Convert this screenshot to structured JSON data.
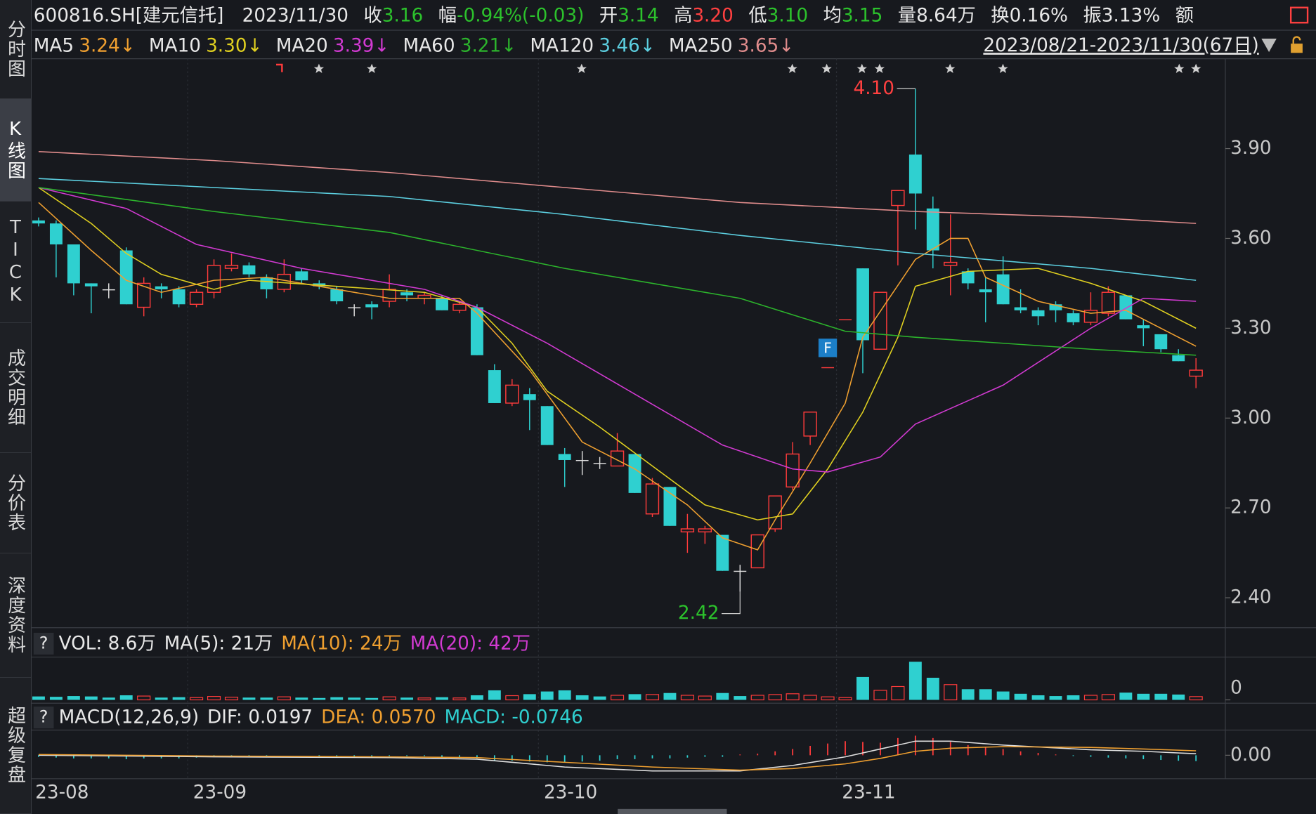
{
  "sidebar": {
    "tabs": [
      "分时图",
      "K线图",
      "TICK",
      "成交明细",
      "分价表",
      "深度资料",
      "超级复盘"
    ],
    "selected": 1
  },
  "header": {
    "title": "600816.SH[建元信托]",
    "date": "2023/11/30",
    "fields": [
      {
        "label": "收",
        "value": "3.16",
        "color": "#2cc22c"
      },
      {
        "label": "幅",
        "value": "-0.94%(-0.03)",
        "color": "#2cc22c"
      },
      {
        "label": "开",
        "value": "3.14",
        "color": "#2cc22c"
      },
      {
        "label": "高",
        "value": "3.20",
        "color": "#ff4040"
      },
      {
        "label": "低",
        "value": "3.10",
        "color": "#2cc22c"
      },
      {
        "label": "均",
        "value": "3.15",
        "color": "#2cc22c"
      },
      {
        "label": "量",
        "value": "8.64万",
        "color": "#e8e8e8"
      },
      {
        "label": "换",
        "value": "0.16%",
        "color": "#e8e8e8"
      },
      {
        "label": "振",
        "value": "3.13%",
        "color": "#e8e8e8"
      },
      {
        "label": "额"
      }
    ]
  },
  "chart_data": [
    {
      "type": "candlestick",
      "range_label": "2023/08/21-2023/11/30(67日)",
      "up_color": "#ff3b3b",
      "down_color": "#2fd0d0",
      "categories": [
        "23-08",
        null,
        null,
        null,
        null,
        null,
        null,
        null,
        null,
        "23-09",
        null,
        null,
        null,
        null,
        null,
        null,
        null,
        null,
        null,
        null,
        null,
        null,
        null,
        null,
        null,
        null,
        null,
        null,
        null,
        "23-10",
        null,
        null,
        null,
        null,
        null,
        null,
        null,
        null,
        null,
        null,
        null,
        null,
        null,
        null,
        null,
        null,
        "23-11",
        null,
        null,
        null,
        null,
        null,
        null,
        null,
        null,
        null,
        null,
        null,
        null,
        null,
        null,
        null,
        null,
        null,
        null,
        null,
        null
      ],
      "open": [
        3.66,
        3.65,
        3.58,
        3.45,
        3.43,
        3.56,
        3.37,
        3.44,
        3.43,
        3.38,
        3.42,
        3.5,
        3.51,
        3.47,
        3.43,
        3.49,
        3.45,
        3.43,
        3.37,
        3.38,
        3.39,
        3.42,
        3.4,
        3.4,
        3.36,
        3.37,
        3.16,
        3.05,
        3.08,
        3.04,
        2.88,
        2.86,
        2.85,
        2.84,
        2.88,
        2.68,
        2.77,
        2.62,
        2.62,
        2.61,
        2.49,
        2.5,
        2.63,
        2.77,
        2.94,
        3.17,
        3.33,
        3.5,
        3.23,
        3.71,
        3.88,
        3.7,
        3.51,
        3.49,
        3.43,
        3.48,
        3.37,
        3.36,
        3.38,
        3.35,
        3.32,
        3.35,
        3.41,
        3.31,
        3.28,
        3.21,
        3.14
      ],
      "high": [
        3.67,
        3.66,
        3.58,
        3.45,
        3.45,
        3.57,
        3.47,
        3.45,
        3.44,
        3.43,
        3.53,
        3.55,
        3.52,
        3.48,
        3.53,
        3.5,
        3.46,
        3.44,
        3.38,
        3.39,
        3.48,
        3.43,
        3.42,
        3.41,
        3.39,
        3.38,
        3.18,
        3.13,
        3.1,
        3.04,
        2.9,
        2.89,
        2.87,
        2.95,
        2.88,
        2.8,
        2.77,
        2.68,
        2.64,
        2.61,
        2.51,
        2.61,
        2.74,
        2.92,
        3.02,
        3.17,
        3.33,
        3.5,
        3.42,
        3.76,
        4.1,
        3.74,
        3.68,
        3.5,
        3.47,
        3.54,
        3.43,
        3.37,
        3.39,
        3.36,
        3.42,
        3.44,
        3.41,
        3.33,
        3.28,
        3.23,
        3.2
      ],
      "low": [
        3.64,
        3.47,
        3.41,
        3.35,
        3.4,
        3.38,
        3.34,
        3.4,
        3.37,
        3.37,
        3.4,
        3.49,
        3.47,
        3.4,
        3.42,
        3.45,
        3.43,
        3.38,
        3.34,
        3.33,
        3.37,
        3.39,
        3.38,
        3.36,
        3.35,
        3.21,
        3.05,
        3.04,
        2.96,
        2.91,
        2.77,
        2.81,
        2.83,
        2.84,
        2.75,
        2.67,
        2.64,
        2.55,
        2.58,
        2.49,
        2.42,
        2.5,
        2.62,
        2.76,
        2.91,
        3.17,
        3.33,
        3.15,
        3.23,
        3.51,
        3.63,
        3.5,
        3.41,
        3.43,
        3.32,
        3.38,
        3.35,
        3.31,
        3.32,
        3.31,
        3.31,
        3.34,
        3.33,
        3.24,
        3.22,
        3.19,
        3.1
      ],
      "close": [
        3.65,
        3.58,
        3.45,
        3.44,
        3.43,
        3.38,
        3.45,
        3.43,
        3.38,
        3.42,
        3.51,
        3.51,
        3.48,
        3.43,
        3.48,
        3.46,
        3.44,
        3.39,
        3.37,
        3.37,
        3.43,
        3.41,
        3.41,
        3.36,
        3.38,
        3.21,
        3.05,
        3.11,
        3.06,
        2.91,
        2.86,
        2.86,
        2.85,
        2.89,
        2.75,
        2.78,
        2.64,
        2.63,
        2.63,
        2.49,
        2.49,
        2.61,
        2.74,
        2.88,
        3.02,
        3.17,
        3.33,
        3.26,
        3.42,
        3.76,
        3.75,
        3.56,
        3.52,
        3.45,
        3.42,
        3.38,
        3.36,
        3.34,
        3.36,
        3.32,
        3.36,
        3.42,
        3.33,
        3.3,
        3.23,
        3.19,
        3.16
      ],
      "series": [
        {
          "name": "MA5",
          "label": "3.24↓",
          "color": "#f0a030",
          "x": [
            0,
            3,
            5,
            7,
            10,
            13,
            17,
            20,
            24,
            25,
            28,
            29,
            31,
            34,
            37,
            39,
            41,
            42,
            44,
            46,
            47,
            50,
            52,
            53,
            54,
            57,
            60,
            62,
            66
          ],
          "values": [
            3.72,
            3.56,
            3.46,
            3.42,
            3.46,
            3.47,
            3.43,
            3.4,
            3.4,
            3.35,
            3.16,
            3.08,
            2.92,
            2.83,
            2.71,
            2.6,
            2.56,
            2.66,
            2.85,
            3.05,
            3.27,
            3.53,
            3.6,
            3.6,
            3.47,
            3.39,
            3.35,
            3.36,
            3.24
          ]
        },
        {
          "name": "MA10",
          "label": "3.30↓",
          "color": "#e0d020",
          "x": [
            0,
            3,
            5,
            7,
            10,
            12,
            17,
            22,
            25,
            27,
            29,
            32,
            35,
            38,
            41,
            43,
            45,
            47,
            49,
            50,
            53,
            57,
            60,
            63,
            66
          ],
          "values": [
            3.77,
            3.65,
            3.55,
            3.48,
            3.43,
            3.46,
            3.44,
            3.42,
            3.37,
            3.25,
            3.09,
            2.97,
            2.84,
            2.71,
            2.66,
            2.68,
            2.83,
            3.02,
            3.27,
            3.44,
            3.49,
            3.5,
            3.45,
            3.39,
            3.3
          ]
        },
        {
          "name": "MA20",
          "label": "3.39↓",
          "color": "#d23ad2",
          "x": [
            0,
            5,
            9,
            15,
            22,
            25,
            29,
            34,
            39,
            43,
            45,
            48,
            50,
            55,
            60,
            63,
            66
          ],
          "values": [
            3.77,
            3.7,
            3.58,
            3.5,
            3.43,
            3.37,
            3.25,
            3.08,
            2.91,
            2.83,
            2.82,
            2.87,
            2.98,
            3.11,
            3.3,
            3.4,
            3.39
          ]
        },
        {
          "name": "MA60",
          "label": "3.21↓",
          "color": "#2cb42c",
          "x": [
            0,
            10,
            20,
            30,
            40,
            46,
            50,
            60,
            66
          ],
          "values": [
            3.77,
            3.69,
            3.62,
            3.5,
            3.4,
            3.29,
            3.27,
            3.23,
            3.21
          ]
        },
        {
          "name": "MA120",
          "label": "3.46↓",
          "color": "#5ccfe0",
          "x": [
            0,
            10,
            20,
            30,
            40,
            50,
            60,
            66
          ],
          "values": [
            3.8,
            3.77,
            3.74,
            3.68,
            3.61,
            3.55,
            3.5,
            3.46
          ]
        },
        {
          "name": "MA250",
          "label": "3.65↓",
          "color": "#e08c8c",
          "x": [
            0,
            10,
            20,
            30,
            40,
            50,
            60,
            66
          ],
          "values": [
            3.89,
            3.86,
            3.82,
            3.77,
            3.72,
            3.69,
            3.67,
            3.65
          ]
        }
      ],
      "ylim": [
        2.3,
        4.2
      ],
      "yticks": [
        {
          "value": 2.4,
          "label": "2.40"
        },
        {
          "value": 2.7,
          "label": "2.70"
        },
        {
          "value": 3.0,
          "label": "3.00"
        },
        {
          "value": 3.3,
          "label": "3.30"
        },
        {
          "value": 3.6,
          "label": "3.60"
        },
        {
          "value": 3.9,
          "label": "3.90"
        }
      ],
      "annotations": {
        "max": "4.10",
        "min": "2.42"
      },
      "markers": [
        {
          "text": "F",
          "index": 45
        }
      ]
    },
    {
      "type": "bar",
      "help": "?",
      "header": [
        {
          "text": "VOL: 8.6万",
          "color": "#e8e8e8"
        },
        {
          "text": "MA(5): 21万",
          "color": "#e8e8e8"
        },
        {
          "text": "MA(10): 24万",
          "color": "#f0a030"
        },
        {
          "text": "MA(20): 42万",
          "color": "#d23ad2"
        }
      ],
      "values": [
        9,
        8,
        10,
        9,
        6,
        12,
        10,
        6,
        7,
        6,
        9,
        7,
        6,
        6,
        8,
        6,
        5,
        7,
        6,
        5,
        8,
        6,
        5,
        7,
        5,
        12,
        25,
        11,
        15,
        22,
        25,
        12,
        9,
        12,
        15,
        14,
        18,
        12,
        10,
        18,
        10,
        12,
        14,
        16,
        12,
        8,
        6,
        60,
        25,
        35,
        100,
        58,
        40,
        28,
        28,
        22,
        16,
        12,
        10,
        12,
        12,
        14,
        19,
        16,
        16,
        14,
        8.6
      ],
      "ylim": [
        0,
        110
      ],
      "yticks": [
        0
      ]
    },
    {
      "type": "macd",
      "help": "?",
      "header": [
        {
          "text": "MACD(12,26,9)",
          "color": "#e8e8e8"
        },
        {
          "text": "DIF: 0.0197",
          "color": "#e8e8e8"
        },
        {
          "text": "DEA: 0.0570",
          "color": "#f0a030"
        },
        {
          "text": "MACD: -0.0746",
          "color": "#2fd0d0"
        }
      ],
      "values": [
        -0.02,
        -0.03,
        -0.04,
        -0.04,
        -0.04,
        -0.05,
        -0.04,
        -0.04,
        -0.04,
        -0.03,
        -0.02,
        -0.01,
        -0.01,
        -0.01,
        0,
        0,
        -0.01,
        -0.02,
        -0.02,
        -0.02,
        -0.01,
        -0.01,
        -0.01,
        -0.02,
        -0.02,
        -0.04,
        -0.07,
        -0.07,
        -0.08,
        -0.09,
        -0.09,
        -0.08,
        -0.07,
        -0.05,
        -0.05,
        -0.04,
        -0.04,
        -0.03,
        -0.02,
        -0.02,
        0.01,
        0.02,
        0.05,
        0.08,
        0.12,
        0.15,
        0.18,
        0.17,
        0.16,
        0.22,
        0.25,
        0.22,
        0.17,
        0.13,
        0.1,
        0.08,
        0.05,
        0.03,
        0.01,
        -0.01,
        -0.02,
        -0.03,
        -0.04,
        -0.05,
        -0.06,
        -0.07,
        -0.0746
      ],
      "series": [
        {
          "color": "#e0e0e0",
          "x": [
            0,
            10,
            20,
            25,
            30,
            35,
            40,
            43,
            46,
            48,
            50,
            52,
            55,
            60,
            63,
            66
          ],
          "values": [
            0.0,
            -0.02,
            -0.03,
            -0.05,
            -0.15,
            -0.2,
            -0.2,
            -0.13,
            -0.02,
            0.08,
            0.18,
            0.18,
            0.13,
            0.07,
            0.05,
            0.0197
          ]
        },
        {
          "color": "#f0a030",
          "x": [
            0,
            10,
            20,
            25,
            30,
            35,
            40,
            43,
            46,
            48,
            50,
            52,
            55,
            60,
            63,
            66
          ],
          "values": [
            0.01,
            -0.01,
            -0.02,
            -0.03,
            -0.09,
            -0.15,
            -0.19,
            -0.17,
            -0.11,
            -0.04,
            0.05,
            0.09,
            0.11,
            0.1,
            0.08,
            0.057
          ]
        }
      ],
      "ylim": [
        -0.3,
        0.3
      ],
      "yticks": [
        {
          "value": 0,
          "label": "0.00"
        }
      ]
    }
  ]
}
